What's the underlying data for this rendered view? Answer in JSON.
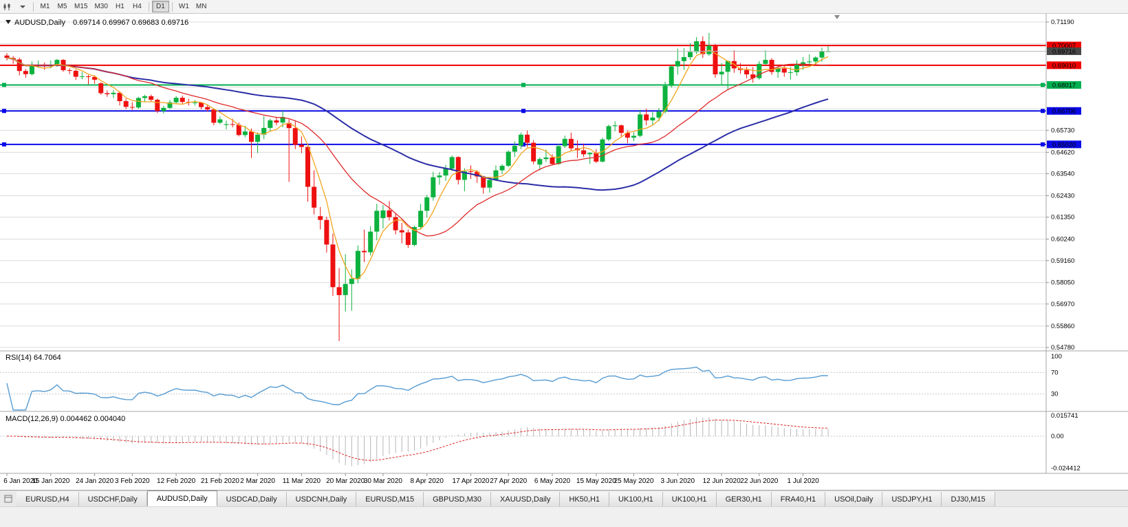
{
  "toolbar": {
    "timeframes": [
      "M1",
      "M5",
      "M15",
      "M30",
      "H1",
      "H4",
      "D1",
      "W1",
      "MN"
    ],
    "active": "D1"
  },
  "chart_data": {
    "type": "candlestick",
    "title": "AUDUSD,Daily",
    "ohlc_text": "0.69714 0.69967 0.69683 0.69716",
    "colors": {
      "up": "#0db23e",
      "down": "#ee1010",
      "ma_fast": "#f2a41c",
      "ma_mid": "#e02828",
      "ma_slow": "#2b2da6",
      "grid": "#dcdcdc"
    },
    "y_axis": {
      "max": 0.7119,
      "min": 0.5478,
      "visible_ticks": [
        "0.71190",
        "0.65730",
        "0.64620",
        "0.63540",
        "0.62430",
        "0.61350",
        "0.60240",
        "0.59160",
        "0.58050",
        "0.56970",
        "0.55860",
        "0.54780"
      ]
    },
    "x_ticks": [
      {
        "i": 0,
        "label": "6 Jan 2020"
      },
      {
        "i": 7,
        "label": "15 Jan 2020"
      },
      {
        "i": 14,
        "label": "24 Jan 2020"
      },
      {
        "i": 20,
        "label": "3 Feb 2020"
      },
      {
        "i": 27,
        "label": "12 Feb 2020"
      },
      {
        "i": 34,
        "label": "21 Feb 2020"
      },
      {
        "i": 40,
        "label": "2 Mar 2020"
      },
      {
        "i": 47,
        "label": "11 Mar 2020"
      },
      {
        "i": 54,
        "label": "20 Mar 2020"
      },
      {
        "i": 60,
        "label": "30 Mar 2020"
      },
      {
        "i": 67,
        "label": "8 Apr 2020"
      },
      {
        "i": 74,
        "label": "17 Apr 2020"
      },
      {
        "i": 80,
        "label": "27 Apr 2020"
      },
      {
        "i": 87,
        "label": "6 May 2020"
      },
      {
        "i": 94,
        "label": "15 May 2020"
      },
      {
        "i": 100,
        "label": "25 May 2020"
      },
      {
        "i": 107,
        "label": "3 Jun 2020"
      },
      {
        "i": 114,
        "label": "12 Jun 2020"
      },
      {
        "i": 120,
        "label": "22 Jun 2020"
      },
      {
        "i": 127,
        "label": "1 Jul 2020"
      }
    ],
    "hlines": [
      {
        "price": 0.70007,
        "color": "#f00000",
        "selected": false
      },
      {
        "price": 0.6901,
        "color": "#f00000",
        "selected": false
      },
      {
        "price": 0.68017,
        "color": "#00b050",
        "selected": true
      },
      {
        "price": 0.66706,
        "color": "#0a0ae6",
        "selected": true
      },
      {
        "price": 0.6502,
        "color": "#0a0ae6",
        "selected": true
      }
    ],
    "bid_line": {
      "price": 0.69716,
      "color": "#b8b8b8",
      "badge_bg": "#474747"
    },
    "price_badges": [
      {
        "text": "0.70007",
        "bg": "#f00000"
      },
      {
        "text": "0.69716",
        "bg": "#474747"
      },
      {
        "text": "0.69010",
        "bg": "#f00000"
      },
      {
        "text": "0.68017",
        "bg": "#00b050"
      },
      {
        "text": "0.66706",
        "bg": "#0a0ae6"
      },
      {
        "text": "0.65020",
        "bg": "#0a0ae6"
      }
    ],
    "indicators": {
      "rsi": {
        "label": "RSI(14) 64.7064",
        "axis_labels": [
          "100",
          "70",
          "30"
        ],
        "levels": [
          70,
          30
        ],
        "color": "#569bd2"
      },
      "macd": {
        "label": "MACD(12,26,9) 0.004462 0.004040",
        "axis_labels": [
          "0.015741",
          "0.00",
          "-0.024412"
        ],
        "axis_values": [
          0.015741,
          0.0,
          -0.024412
        ],
        "histogram_color": "#b6b6b6",
        "signal_color": "#e02020"
      }
    },
    "candles": [
      [
        0.695,
        0.6962,
        0.6925,
        0.6938
      ],
      [
        0.6938,
        0.6948,
        0.6908,
        0.693
      ],
      [
        0.693,
        0.694,
        0.685,
        0.6872
      ],
      [
        0.6872,
        0.6882,
        0.6838,
        0.6856
      ],
      [
        0.6856,
        0.692,
        0.685,
        0.69
      ],
      [
        0.69,
        0.6925,
        0.6888,
        0.6902
      ],
      [
        0.6902,
        0.6915,
        0.6878,
        0.6896
      ],
      [
        0.6896,
        0.6925,
        0.6885,
        0.6903
      ],
      [
        0.6903,
        0.6933,
        0.6893,
        0.6928
      ],
      [
        0.6928,
        0.6932,
        0.6868,
        0.6876
      ],
      [
        0.6876,
        0.6886,
        0.6856,
        0.6873
      ],
      [
        0.6873,
        0.688,
        0.6827,
        0.6843
      ],
      [
        0.6843,
        0.6867,
        0.683,
        0.6845
      ],
      [
        0.6845,
        0.6852,
        0.6805,
        0.6842
      ],
      [
        0.6842,
        0.685,
        0.6808,
        0.6828
      ],
      [
        0.681,
        0.6816,
        0.6752,
        0.676
      ],
      [
        0.676,
        0.6774,
        0.6742,
        0.6755
      ],
      [
        0.6755,
        0.6776,
        0.6735,
        0.6762
      ],
      [
        0.6762,
        0.677,
        0.6698,
        0.672
      ],
      [
        0.672,
        0.6733,
        0.668,
        0.6691
      ],
      [
        0.6691,
        0.6715,
        0.6676,
        0.6688
      ],
      [
        0.6688,
        0.6742,
        0.6682,
        0.6736
      ],
      [
        0.6736,
        0.6752,
        0.6718,
        0.6745
      ],
      [
        0.6745,
        0.6753,
        0.6715,
        0.6727
      ],
      [
        0.6727,
        0.6733,
        0.666,
        0.667
      ],
      [
        0.667,
        0.6696,
        0.6658,
        0.6686
      ],
      [
        0.6686,
        0.6726,
        0.668,
        0.6714
      ],
      [
        0.6714,
        0.6746,
        0.6708,
        0.6737
      ],
      [
        0.6737,
        0.6748,
        0.6708,
        0.6716
      ],
      [
        0.6716,
        0.6732,
        0.6698,
        0.6712
      ],
      [
        0.6712,
        0.6726,
        0.6698,
        0.6713
      ],
      [
        0.6713,
        0.6717,
        0.6678,
        0.669
      ],
      [
        0.669,
        0.6702,
        0.6668,
        0.6678
      ],
      [
        0.6678,
        0.6682,
        0.6598,
        0.6611
      ],
      [
        0.6611,
        0.6642,
        0.6604,
        0.6628
      ],
      [
        0.66,
        0.6622,
        0.6578,
        0.6604
      ],
      [
        0.6604,
        0.6631,
        0.6588,
        0.6601
      ],
      [
        0.6601,
        0.6612,
        0.6542,
        0.6549
      ],
      [
        0.6549,
        0.6596,
        0.6538,
        0.6567
      ],
      [
        0.6567,
        0.6582,
        0.6433,
        0.6515
      ],
      [
        0.6515,
        0.6562,
        0.6458,
        0.6551
      ],
      [
        0.6551,
        0.6645,
        0.6528,
        0.6585
      ],
      [
        0.6585,
        0.6632,
        0.6568,
        0.6623
      ],
      [
        0.6623,
        0.664,
        0.6598,
        0.6612
      ],
      [
        0.6612,
        0.6672,
        0.6588,
        0.664
      ],
      [
        0.661,
        0.6628,
        0.6313,
        0.6584
      ],
      [
        0.6584,
        0.6618,
        0.6478,
        0.65
      ],
      [
        0.65,
        0.6542,
        0.6458,
        0.6489
      ],
      [
        0.6489,
        0.6492,
        0.6213,
        0.6288
      ],
      [
        0.6288,
        0.6372,
        0.6148,
        0.6183
      ],
      [
        0.614,
        0.6186,
        0.6073,
        0.6121
      ],
      [
        0.6121,
        0.6137,
        0.5956,
        0.5997
      ],
      [
        0.5997,
        0.6052,
        0.5738,
        0.5782
      ],
      [
        0.5782,
        0.5878,
        0.551,
        0.5742
      ],
      [
        0.5742,
        0.5948,
        0.5658,
        0.5798
      ],
      [
        0.5798,
        0.5872,
        0.5663,
        0.5824
      ],
      [
        0.5824,
        0.5992,
        0.5802,
        0.5965
      ],
      [
        0.5965,
        0.6072,
        0.5908,
        0.5958
      ],
      [
        0.5958,
        0.609,
        0.5942,
        0.6062
      ],
      [
        0.6062,
        0.6202,
        0.6018,
        0.6167
      ],
      [
        0.613,
        0.6196,
        0.6078,
        0.6169
      ],
      [
        0.6169,
        0.6216,
        0.6118,
        0.6135
      ],
      [
        0.6135,
        0.6152,
        0.6048,
        0.6069
      ],
      [
        0.6069,
        0.6106,
        0.6003,
        0.6058
      ],
      [
        0.6058,
        0.6073,
        0.598,
        0.5995
      ],
      [
        0.5995,
        0.6092,
        0.5988,
        0.6085
      ],
      [
        0.6085,
        0.6202,
        0.6078,
        0.6167
      ],
      [
        0.6167,
        0.6247,
        0.6133,
        0.6235
      ],
      [
        0.6235,
        0.6364,
        0.6218,
        0.6336
      ],
      [
        0.6336,
        0.6362,
        0.6298,
        0.6345
      ],
      [
        0.6345,
        0.6399,
        0.6318,
        0.638
      ],
      [
        0.638,
        0.6446,
        0.6368,
        0.6438
      ],
      [
        0.6438,
        0.6442,
        0.63,
        0.6323
      ],
      [
        0.6323,
        0.6382,
        0.6265,
        0.6366
      ],
      [
        0.6366,
        0.6396,
        0.6328,
        0.6364
      ],
      [
        0.6364,
        0.6372,
        0.6308,
        0.634
      ],
      [
        0.634,
        0.6344,
        0.6253,
        0.6284
      ],
      [
        0.6284,
        0.6332,
        0.6258,
        0.6323
      ],
      [
        0.6323,
        0.6396,
        0.6318,
        0.6371
      ],
      [
        0.6371,
        0.6402,
        0.6353,
        0.6394
      ],
      [
        0.6394,
        0.6472,
        0.6388,
        0.6465
      ],
      [
        0.6465,
        0.6517,
        0.6438,
        0.6495
      ],
      [
        0.6495,
        0.6562,
        0.6478,
        0.6551
      ],
      [
        0.6551,
        0.6572,
        0.6488,
        0.651
      ],
      [
        0.651,
        0.6523,
        0.6402,
        0.6416
      ],
      [
        0.64,
        0.6436,
        0.6372,
        0.6428
      ],
      [
        0.6428,
        0.6476,
        0.6413,
        0.6436
      ],
      [
        0.6436,
        0.6452,
        0.6397,
        0.6403
      ],
      [
        0.6403,
        0.6506,
        0.6399,
        0.6493
      ],
      [
        0.6493,
        0.6546,
        0.6484,
        0.653
      ],
      [
        0.653,
        0.6561,
        0.6468,
        0.6482
      ],
      [
        0.6482,
        0.6522,
        0.6433,
        0.6472
      ],
      [
        0.6472,
        0.6506,
        0.6438,
        0.6452
      ],
      [
        0.6452,
        0.6462,
        0.6403,
        0.6459
      ],
      [
        0.6459,
        0.6478,
        0.6408,
        0.6415
      ],
      [
        0.6415,
        0.6536,
        0.6411,
        0.6527
      ],
      [
        0.6527,
        0.6602,
        0.6518,
        0.6594
      ],
      [
        0.6594,
        0.6618,
        0.6568,
        0.6598
      ],
      [
        0.6598,
        0.6602,
        0.6541,
        0.656
      ],
      [
        0.656,
        0.6572,
        0.6508,
        0.6536
      ],
      [
        0.6536,
        0.6562,
        0.6518,
        0.6545
      ],
      [
        0.6545,
        0.6676,
        0.6538,
        0.6653
      ],
      [
        0.6653,
        0.6682,
        0.6598,
        0.6623
      ],
      [
        0.6623,
        0.6666,
        0.6598,
        0.6637
      ],
      [
        0.6637,
        0.6686,
        0.6618,
        0.6667
      ],
      [
        0.6667,
        0.6818,
        0.6658,
        0.6797
      ],
      [
        0.6797,
        0.6902,
        0.6788,
        0.6895
      ],
      [
        0.6895,
        0.6985,
        0.6853,
        0.6922
      ],
      [
        0.6922,
        0.6988,
        0.6878,
        0.6942
      ],
      [
        0.6942,
        0.7013,
        0.6928,
        0.6968
      ],
      [
        0.6968,
        0.7043,
        0.6958,
        0.7022
      ],
      [
        0.7022,
        0.7047,
        0.6938,
        0.6957
      ],
      [
        0.6957,
        0.7064,
        0.6948,
        0.7
      ],
      [
        0.7,
        0.7008,
        0.6838,
        0.6855
      ],
      [
        0.6855,
        0.6912,
        0.6798,
        0.6868
      ],
      [
        0.6868,
        0.6926,
        0.6776,
        0.6922
      ],
      [
        0.6922,
        0.6977,
        0.6863,
        0.6885
      ],
      [
        0.6885,
        0.6912,
        0.6858,
        0.6877
      ],
      [
        0.6877,
        0.6892,
        0.6835,
        0.6855
      ],
      [
        0.6855,
        0.6892,
        0.6813,
        0.6836
      ],
      [
        0.6836,
        0.6922,
        0.6828,
        0.6908
      ],
      [
        0.6908,
        0.6976,
        0.6903,
        0.6928
      ],
      [
        0.6928,
        0.6937,
        0.6853,
        0.6867
      ],
      [
        0.6867,
        0.6896,
        0.6838,
        0.6885
      ],
      [
        0.6885,
        0.6902,
        0.6843,
        0.6864
      ],
      [
        0.6864,
        0.6892,
        0.6828,
        0.6866
      ],
      [
        0.6866,
        0.6927,
        0.6848,
        0.6903
      ],
      [
        0.6903,
        0.6942,
        0.6878,
        0.6916
      ],
      [
        0.6916,
        0.6956,
        0.6898,
        0.692
      ],
      [
        0.692,
        0.6947,
        0.6903,
        0.694
      ],
      [
        0.694,
        0.699,
        0.6918,
        0.6973
      ],
      [
        0.69714,
        0.69967,
        0.69683,
        0.69716
      ]
    ]
  },
  "tabs": {
    "active_index": 2,
    "items": [
      "EURUSD,H4",
      "USDCHF,Daily",
      "AUDUSD,Daily",
      "USDCAD,Daily",
      "USDCNH,Daily",
      "EURUSD,M15",
      "GBPUSD,M30",
      "XAUUSD,Daily",
      "HK50,H1",
      "UK100,H1",
      "UK100,H1",
      "GER30,H1",
      "FRA40,H1",
      "USOil,Daily",
      "USDJPY,H1",
      "DJ30,M15"
    ]
  }
}
